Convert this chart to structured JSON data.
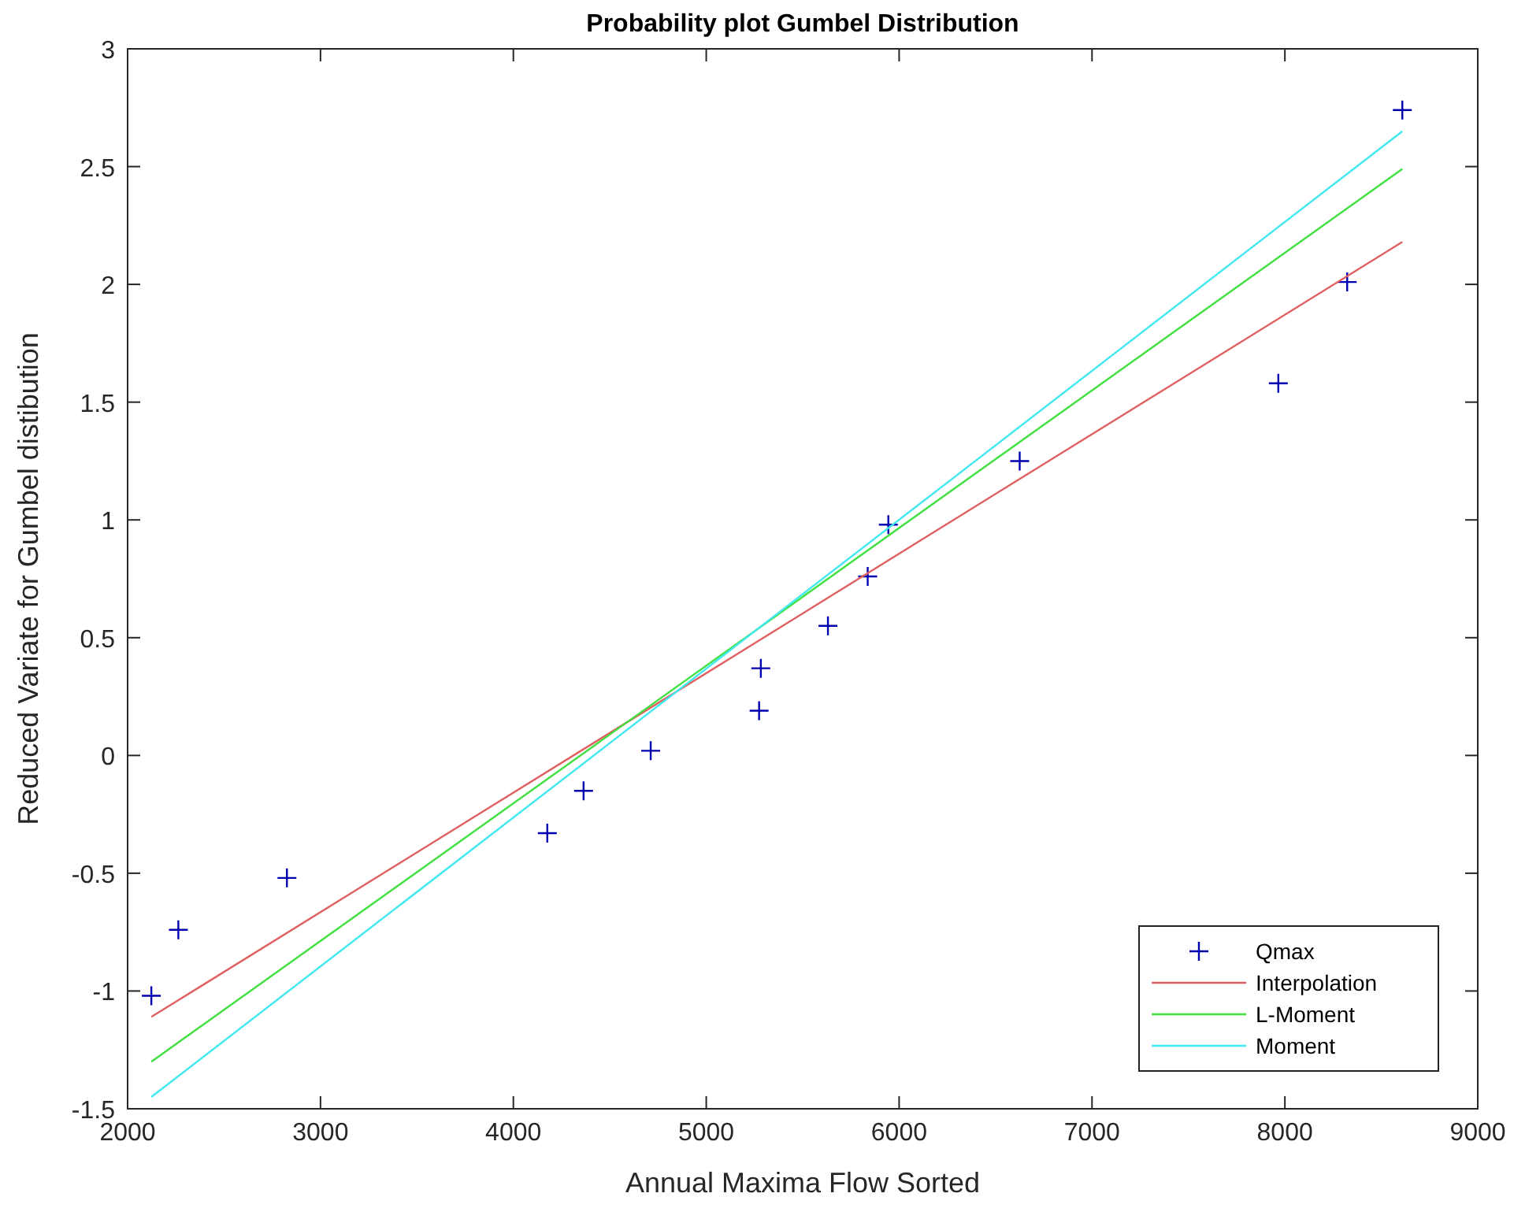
{
  "chart_data": {
    "type": "scatter",
    "title": "Probability plot Gumbel Distribution",
    "xlabel": "Annual Maxima Flow Sorted",
    "ylabel": "Reduced Variate for Gumbel distibution",
    "xlim": [
      2000,
      9000
    ],
    "xticks": [
      2000,
      3000,
      4000,
      5000,
      6000,
      7000,
      8000,
      9000
    ],
    "ylim": [
      -1.5,
      3
    ],
    "yticks": [
      -1.5,
      -1,
      -0.5,
      0,
      0.5,
      1,
      1.5,
      2,
      2.5,
      3
    ],
    "grid": false,
    "legend": "bottom right",
    "series": [
      {
        "name": "Qmax",
        "marker": "cross",
        "color": "#0000b0",
        "x": [
          2123,
          2263,
          2826,
          4176,
          4364,
          4712,
          5274,
          5283,
          5631,
          5837,
          5944,
          6625,
          7966,
          8323,
          8609
        ],
        "values": [
          -1.02,
          -0.74,
          -0.52,
          -0.33,
          -0.15,
          0.02,
          0.19,
          0.37,
          0.55,
          0.76,
          0.98,
          1.25,
          1.58,
          2.01,
          2.74
        ]
      },
      {
        "name": "Interpolation",
        "type": "line",
        "marker": "none",
        "color": "#e06060",
        "x": [
          2123,
          8609
        ],
        "values": [
          -1.11,
          2.18
        ]
      },
      {
        "name": "L-Moment",
        "type": "line",
        "marker": "none",
        "color": "#40e040",
        "x": [
          2123,
          8609
        ],
        "values": [
          -1.3,
          2.49
        ]
      },
      {
        "name": "Moment",
        "type": "line",
        "marker": "none",
        "color": "#40e8f0",
        "x": [
          2123,
          8609
        ],
        "values": [
          -1.45,
          2.65
        ]
      }
    ]
  }
}
